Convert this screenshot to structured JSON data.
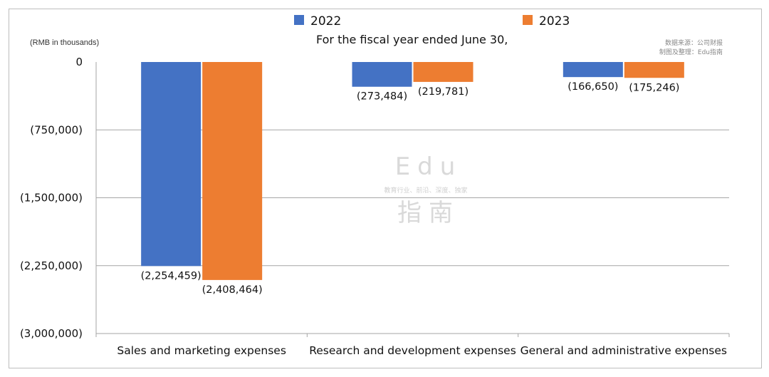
{
  "chart_data": {
    "type": "bar",
    "title": "For the fiscal year ended June 30,",
    "unit_label": "(RMB in thousands)",
    "source_note": [
      "数据来源：公司财报",
      "制图及整理：Edu指南"
    ],
    "watermark": {
      "top": "Edu",
      "middle": "教育行业、前沿、深度、独家",
      "bottom": "指南"
    },
    "categories": [
      "Sales and marketing expenses",
      "Research and development expenses",
      "General and administrative expenses"
    ],
    "series": [
      {
        "name": "2022",
        "color": "#4472c4",
        "values": [
          -2254459,
          -273484,
          -166650
        ],
        "labels": [
          "(2,254,459)",
          "(273,484)",
          "(166,650)"
        ]
      },
      {
        "name": "2023",
        "color": "#ed7d31",
        "values": [
          -2408464,
          -219781,
          -175246
        ],
        "labels": [
          "(2,408,464)",
          "(219,781)",
          "(175,246)"
        ]
      }
    ],
    "ylim": [
      -3000000,
      0
    ],
    "yticks": [
      {
        "value": 0,
        "label": "0"
      },
      {
        "value": -750000,
        "label": "(750,000)"
      },
      {
        "value": -1500000,
        "label": "(1,500,000)"
      },
      {
        "value": -2250000,
        "label": "(2,250,000)"
      },
      {
        "value": -3000000,
        "label": "(3,000,000)"
      }
    ],
    "grid": true,
    "legend_position": "top"
  }
}
